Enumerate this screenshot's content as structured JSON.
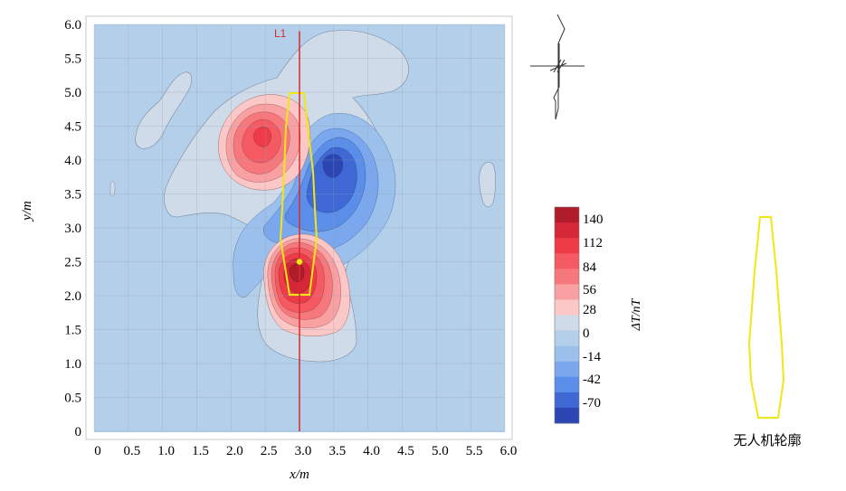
{
  "chart_data": {
    "type": "heatmap",
    "subtype": "filled-contour",
    "xlabel": "x/m",
    "ylabel": "y/m",
    "xlim": [
      0,
      6.0
    ],
    "ylim": [
      0,
      6.0
    ],
    "x_ticks": [
      "0",
      "0.5",
      "1.0",
      "1.5",
      "2.0",
      "2.5",
      "3.0",
      "3.5",
      "4.0",
      "4.5",
      "5.0",
      "5.5",
      "6.0"
    ],
    "y_ticks": [
      "0",
      "0.5",
      "1.0",
      "1.5",
      "2.0",
      "2.5",
      "3.0",
      "3.5",
      "4.0",
      "4.5",
      "5.0",
      "5.5",
      "6.0"
    ],
    "grid": true,
    "colorbar": {
      "label": "ΔT/nT",
      "tick_labels": [
        "140",
        "112",
        "84",
        "56",
        "28",
        "0",
        "-14",
        "-42",
        "-70"
      ],
      "colors": [
        "#b01c2a",
        "#d42737",
        "#ee3b47",
        "#f55a62",
        "#f7787c",
        "#f9a1a2",
        "#fbc7c7",
        "#cfdbe8",
        "#b4cfe9",
        "#9cc0ec",
        "#7aa7ee",
        "#5a8ee8",
        "#3f68d4",
        "#2c47b3"
      ]
    },
    "background_level": "-14",
    "anomalies": [
      {
        "kind": "positive",
        "center": [
          3.0,
          2.35
        ],
        "peak": 140
      },
      {
        "kind": "positive",
        "center": [
          2.5,
          4.4
        ],
        "peak": 84
      },
      {
        "kind": "negative",
        "center": [
          3.5,
          4.0
        ],
        "peak": -98
      }
    ],
    "profile_line": {
      "label": "L1",
      "x": 3.0,
      "y_range": [
        0,
        5.9
      ],
      "color": "#d62b2b"
    },
    "marker": {
      "x": 3.0,
      "y": 2.5,
      "color": "#f2e614"
    },
    "outline_color": "#f2e614"
  },
  "legend": {
    "outline_label": "无人机轮廓"
  }
}
